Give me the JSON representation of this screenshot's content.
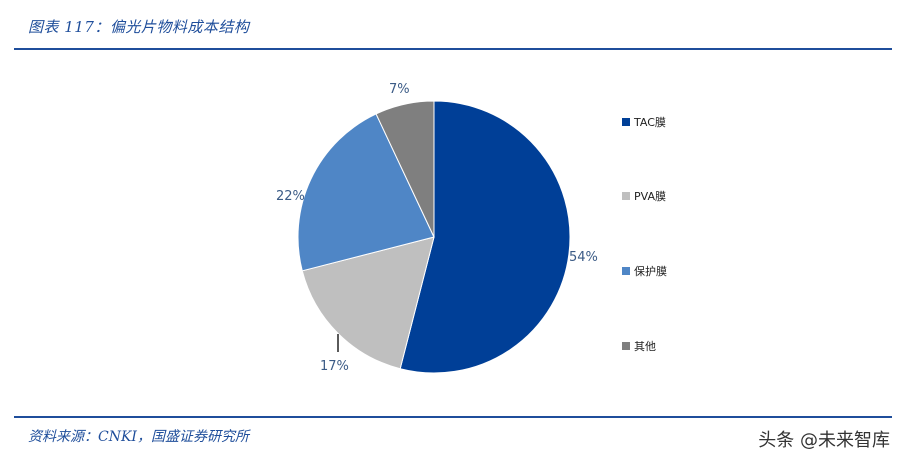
{
  "header": {
    "title": "图表 117：偏光片物料成本结构"
  },
  "footer": {
    "source": "资料来源：CNKI，国盛证券研究所",
    "watermark": "头条 @未来智库"
  },
  "chart_data": {
    "type": "pie",
    "title": "图表 117：偏光片物料成本结构",
    "categories": [
      "TAC膜",
      "PVA膜",
      "保护膜",
      "其他"
    ],
    "values": [
      54,
      17,
      22,
      7
    ],
    "unit": "%",
    "colors": [
      "#003f97",
      "#bfbfbf",
      "#4f86c6",
      "#7f7f7f"
    ],
    "labels": [
      "54%",
      "17%",
      "22%",
      "7%"
    ],
    "start_angle": "12 o'clock, clockwise",
    "legend_position": "right"
  },
  "legend": {
    "items": [
      {
        "label": "TAC膜",
        "color": "#003f97"
      },
      {
        "label": "PVA膜",
        "color": "#bfbfbf"
      },
      {
        "label": "保护膜",
        "color": "#4f86c6"
      },
      {
        "label": "其他",
        "color": "#7f7f7f"
      }
    ]
  }
}
